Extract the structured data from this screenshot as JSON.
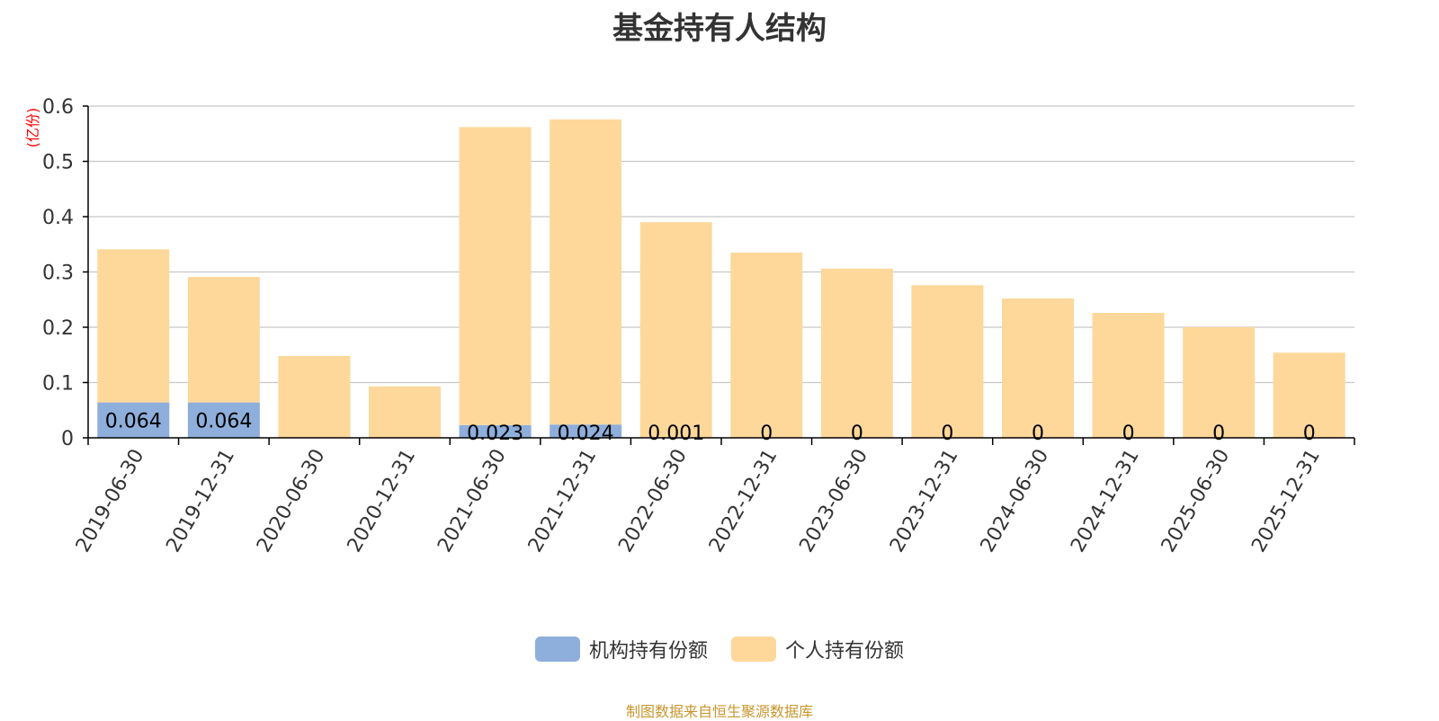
{
  "title": "基金持有人结构",
  "source_note": "制图数据来自恒生聚源数据库",
  "colors": {
    "institution": "#8eaedb",
    "individual": "#fdd89a",
    "unit": "#ff0000",
    "grid": "#c8c8c8",
    "axis": "#000000"
  },
  "chart_data": {
    "type": "bar",
    "stacked": true,
    "title": "基金持有人结构",
    "ylabel": "(亿份)",
    "ylim": [
      0,
      0.6
    ],
    "yticks": [
      0,
      0.1,
      0.2,
      0.3,
      0.4,
      0.5,
      0.6
    ],
    "categories": [
      "2019-06-30",
      "2019-12-31",
      "2020-06-30",
      "2020-12-31",
      "2021-06-30",
      "2021-12-31",
      "2022-06-30",
      "2022-12-31",
      "2023-06-30",
      "2023-12-31",
      "2024-06-30",
      "2024-12-31",
      "2025-06-30",
      "2025-12-31"
    ],
    "series": [
      {
        "name": "机构持有份额",
        "values": [
          0.064,
          0.064,
          0,
          0,
          0.023,
          0.024,
          0.001,
          0,
          0,
          0,
          0,
          0,
          0,
          0
        ],
        "labels": [
          "0.064",
          "0.064",
          "",
          "",
          "0.023",
          "0.024",
          "0.001",
          "0",
          "0",
          "0",
          "0",
          "0",
          "0",
          "0"
        ]
      },
      {
        "name": "个人持有份额",
        "values": [
          0.277,
          0.227,
          0.148,
          0.093,
          0.539,
          0.552,
          0.389,
          0.335,
          0.306,
          0.276,
          0.252,
          0.226,
          0.2,
          0.154
        ]
      }
    ],
    "grid": true,
    "legend_position": "bottom-center"
  }
}
